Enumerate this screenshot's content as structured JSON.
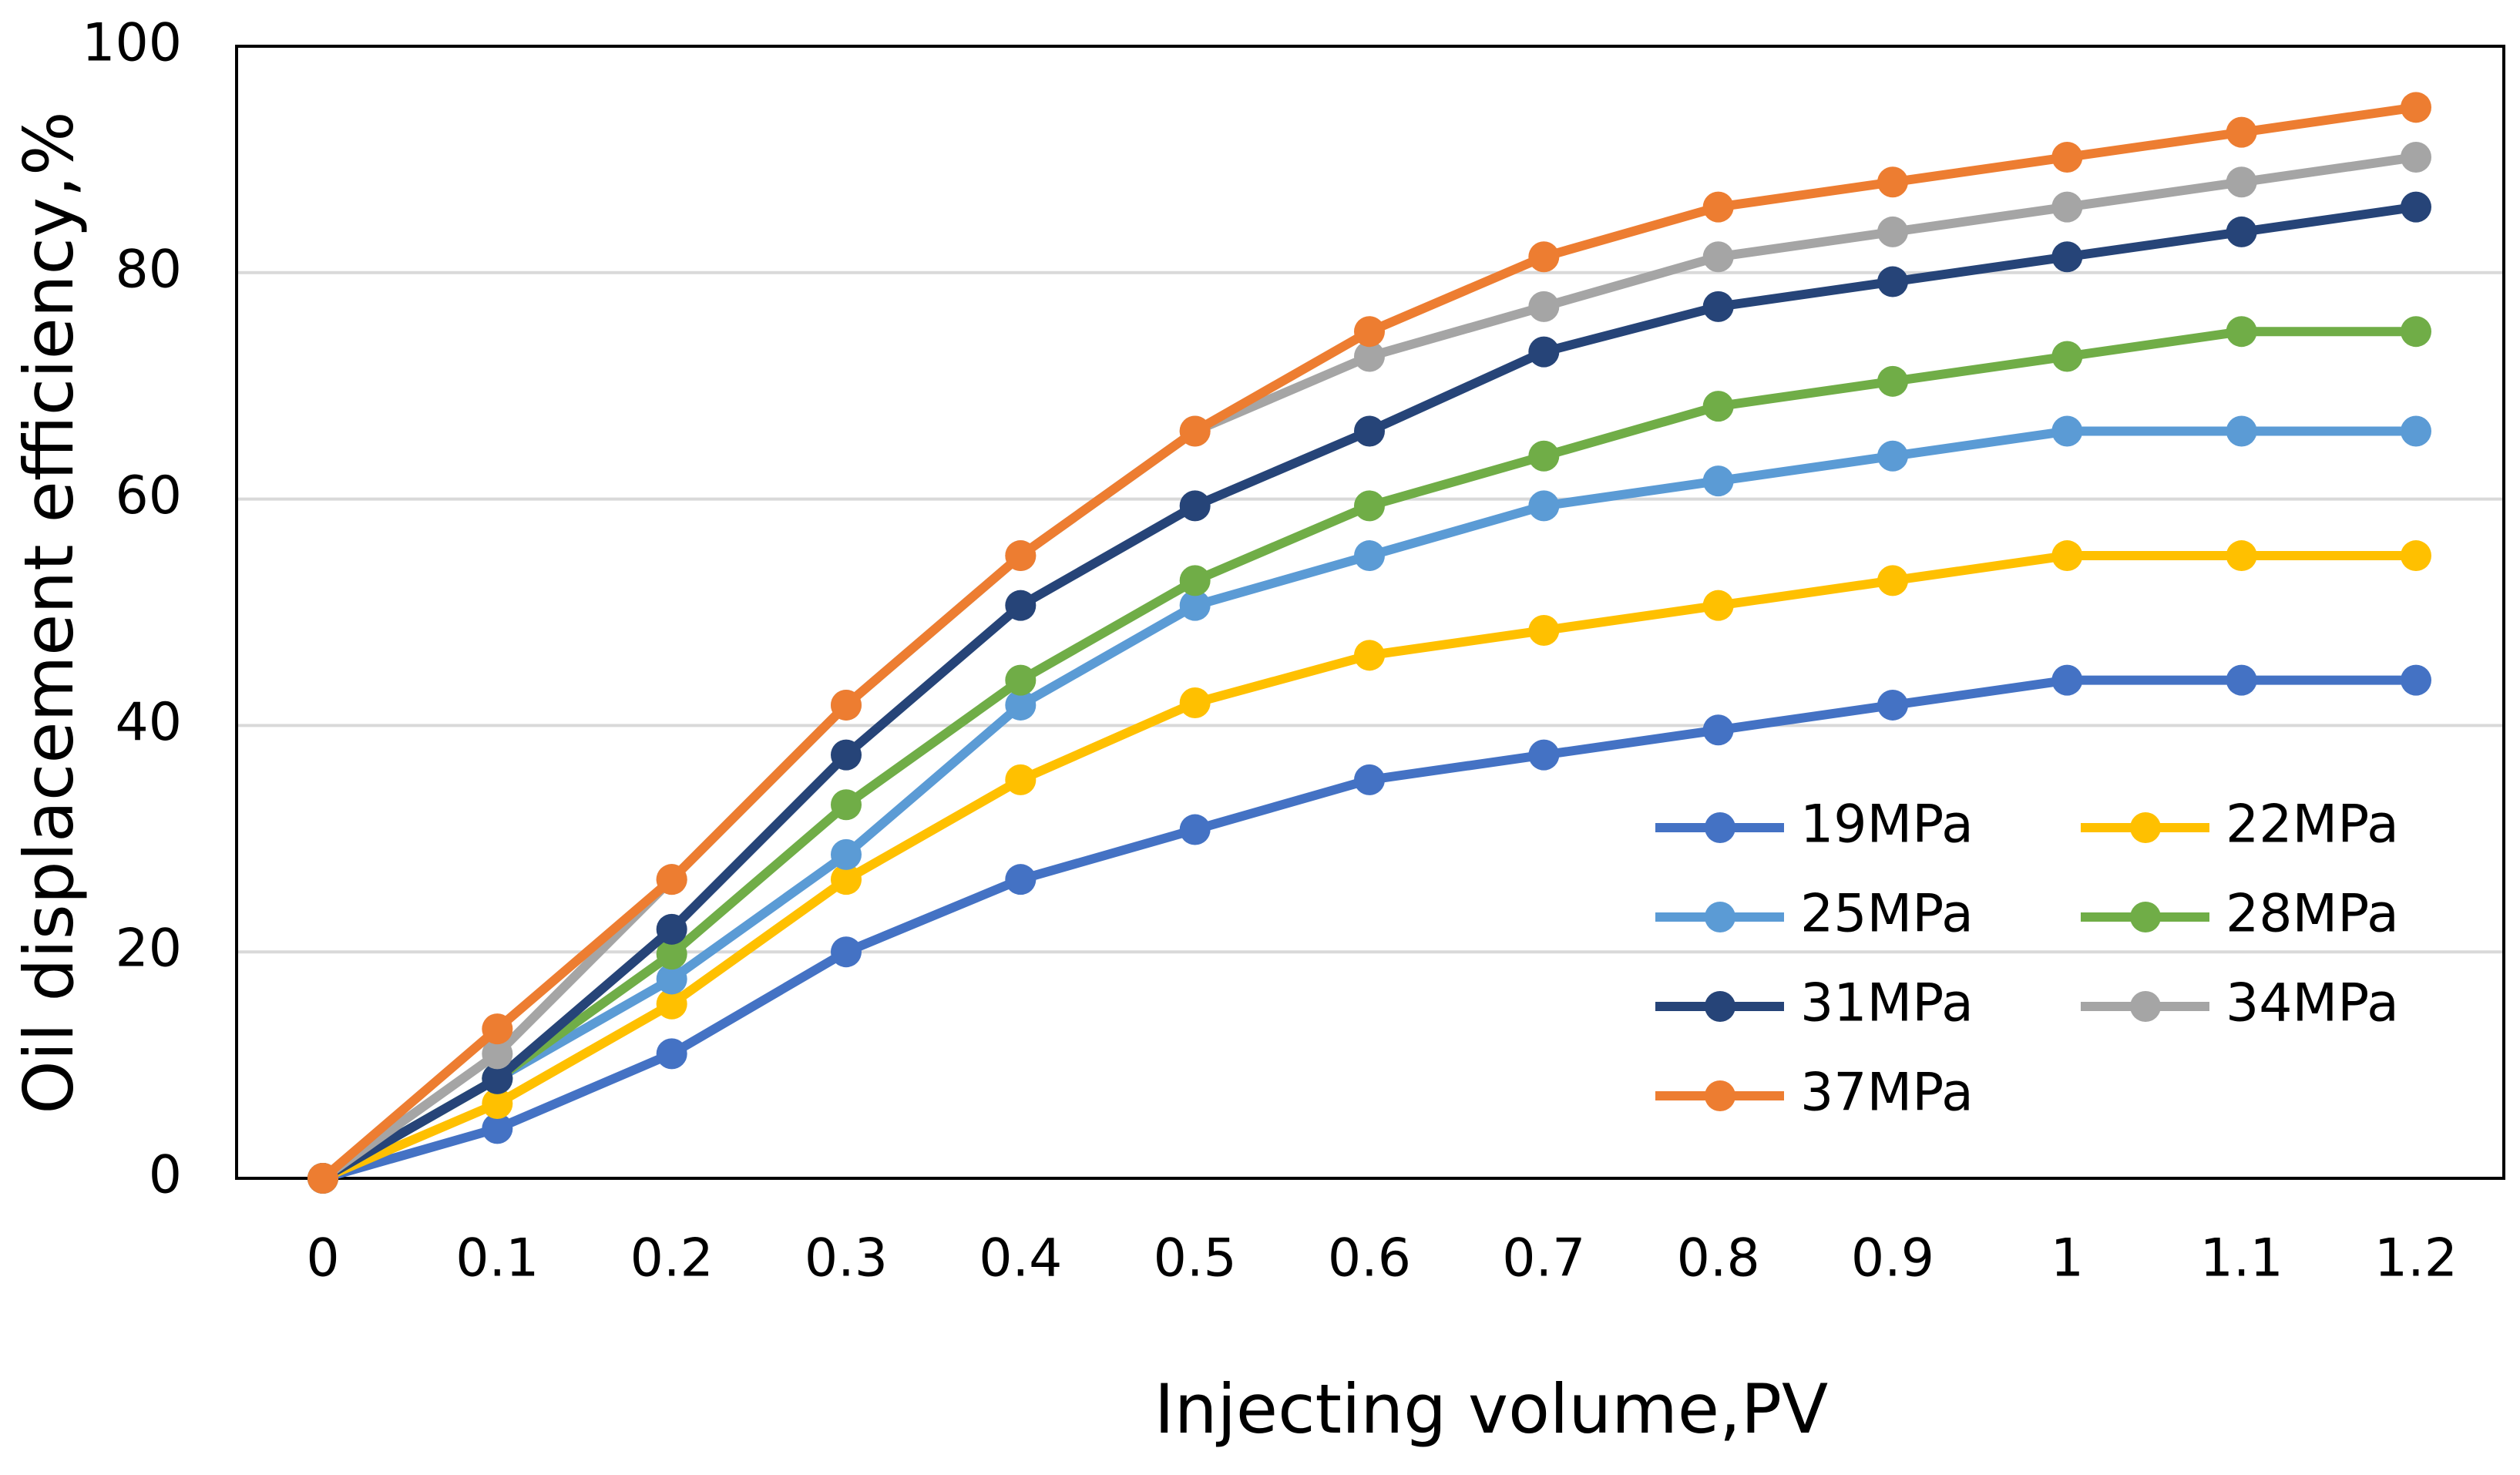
{
  "chart_data": {
    "type": "line",
    "x_label": "Injecting volume,PV",
    "y_label": "Oil displacement efficiency,%",
    "categories": [
      "0",
      "0.1",
      "0.2",
      "0.3",
      "0.4",
      "0.5",
      "0.6",
      "0.7",
      "0.8",
      "0.9",
      "1",
      "1.1",
      "1.2"
    ],
    "ylim": [
      0,
      100
    ],
    "yticks": [
      0,
      20,
      40,
      60,
      80,
      100
    ],
    "grid": true,
    "legend": "lower-right",
    "series": [
      {
        "name": "19MPa",
        "color": "#4472c4",
        "values": [
          0,
          4.4,
          11,
          20,
          26.4,
          30.8,
          35.2,
          37.4,
          39.6,
          41.8,
          44,
          44,
          44
        ]
      },
      {
        "name": "22MPa",
        "color": "#ffc000",
        "values": [
          0,
          6.6,
          15.4,
          26.4,
          35.2,
          42,
          46.2,
          48.4,
          50.6,
          52.8,
          55,
          55,
          55
        ]
      },
      {
        "name": "25MPa",
        "color": "#5b9bd5",
        "values": [
          0,
          8.8,
          17.6,
          28.6,
          41.8,
          50.6,
          55,
          59.4,
          61.6,
          63.8,
          66,
          66,
          66
        ]
      },
      {
        "name": "28MPa",
        "color": "#70ad47",
        "values": [
          0,
          8.8,
          19.8,
          33,
          44,
          52.8,
          59.4,
          63.8,
          68.2,
          70.4,
          72.6,
          74.8,
          74.8
        ]
      },
      {
        "name": "31MPa",
        "color": "#264478",
        "values": [
          0,
          8.8,
          22,
          37.4,
          50.6,
          59.4,
          66,
          73,
          77,
          79.2,
          81.4,
          83.6,
          85.8
        ]
      },
      {
        "name": "34MPa",
        "color": "#a5a5a5",
        "values": [
          0,
          11,
          26.4,
          41.8,
          55,
          66,
          72.6,
          77,
          81.4,
          83.6,
          85.8,
          88,
          90.2
        ]
      },
      {
        "name": "37MPa",
        "color": "#ed7d31",
        "values": [
          0,
          13.2,
          26.4,
          41.8,
          55,
          66,
          74.8,
          81.4,
          85.8,
          88,
          90.2,
          92.4,
          94.6
        ]
      }
    ]
  }
}
